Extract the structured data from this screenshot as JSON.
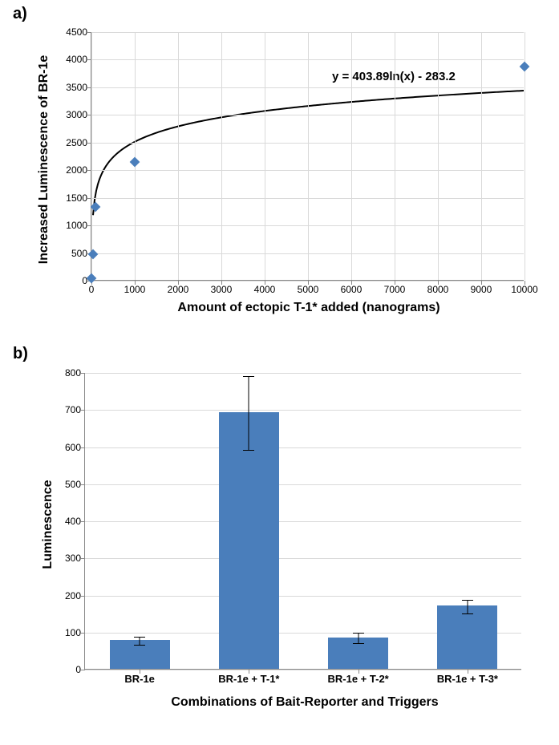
{
  "panelA": {
    "label": "a)",
    "type": "scatter",
    "xlabel": "Amount of ectopic T-1* added (nanograms)",
    "ylabel": "Increased Luminescence of BR-1e",
    "equation": "y = 403.89ln(x) - 283.2",
    "xlim": [
      0,
      10000
    ],
    "ylim": [
      0,
      4500
    ],
    "xtick_step": 1000,
    "ytick_step": 500,
    "xticks": [
      0,
      1000,
      2000,
      3000,
      4000,
      5000,
      6000,
      7000,
      8000,
      9000,
      10000
    ],
    "yticks": [
      0,
      500,
      1000,
      1500,
      2000,
      2500,
      3000,
      3500,
      4000,
      4500
    ],
    "marker_color": "#4a7ebb",
    "marker_style": "diamond",
    "marker_size": 9,
    "curve_color": "#000000",
    "curve_width": 2,
    "grid_color": "#d9d9d9",
    "background_color": "#ffffff",
    "label_fontsize": 16,
    "tick_fontsize": 12,
    "points": [
      {
        "x": 5,
        "y": 50
      },
      {
        "x": 30,
        "y": 480
      },
      {
        "x": 100,
        "y": 1340
      },
      {
        "x": 1000,
        "y": 2150
      },
      {
        "x": 10000,
        "y": 3870
      }
    ]
  },
  "panelB": {
    "label": "b)",
    "type": "bar",
    "xlabel": "Combinations of Bait-Reporter and Triggers",
    "ylabel": "Luminescence",
    "ylim": [
      0,
      800
    ],
    "ytick_step": 100,
    "yticks": [
      0,
      100,
      200,
      300,
      400,
      500,
      600,
      700,
      800
    ],
    "bar_color": "#4a7ebb",
    "bar_width": 0.55,
    "grid_color": "#d9d9d9",
    "background_color": "#ffffff",
    "label_fontsize": 16,
    "tick_fontsize": 13,
    "error_cap_width": 14,
    "bars": [
      {
        "label": "BR-1e",
        "value": 78,
        "err": 10
      },
      {
        "label": "BR-1e + T-1*",
        "value": 692,
        "err": 100
      },
      {
        "label": "BR-1e + T-2*",
        "value": 85,
        "err": 14
      },
      {
        "label": "BR-1e + T-3*",
        "value": 170,
        "err": 18
      }
    ]
  }
}
